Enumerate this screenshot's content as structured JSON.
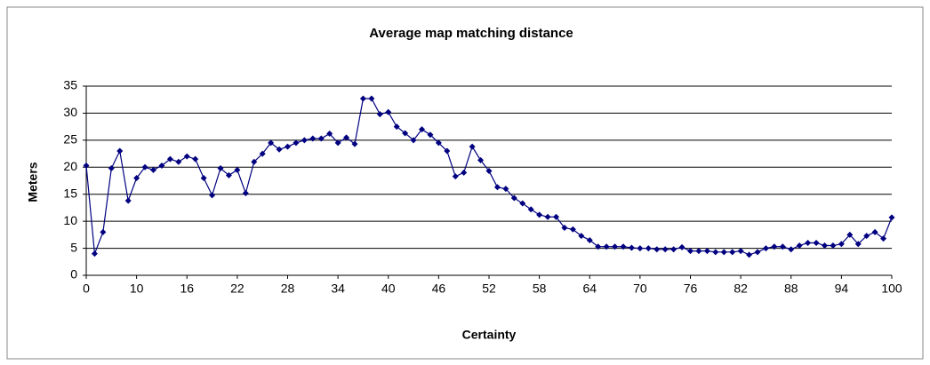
{
  "chart_data": {
    "type": "line",
    "title": "Average map matching distance",
    "x_label": "Certainty",
    "y_label": "Meters",
    "categories": [
      0,
      null,
      null,
      null,
      null,
      null,
      10,
      null,
      null,
      null,
      null,
      null,
      16,
      null,
      null,
      null,
      null,
      null,
      22,
      null,
      null,
      null,
      null,
      null,
      28,
      null,
      null,
      null,
      null,
      null,
      34,
      null,
      null,
      null,
      null,
      null,
      40,
      null,
      null,
      null,
      null,
      null,
      46,
      null,
      null,
      null,
      null,
      null,
      52,
      null,
      null,
      null,
      null,
      null,
      58,
      null,
      null,
      null,
      null,
      null,
      64,
      null,
      null,
      null,
      null,
      null,
      70,
      null,
      null,
      null,
      null,
      null,
      76,
      null,
      null,
      null,
      null,
      null,
      82,
      null,
      null,
      null,
      null,
      null,
      88,
      null,
      null,
      null,
      null,
      null,
      94,
      null,
      null,
      null,
      null,
      null,
      100
    ],
    "values": [
      20.3,
      4,
      8,
      19.8,
      23,
      13.8,
      18,
      20,
      19.5,
      20.3,
      21.5,
      21,
      22,
      21.5,
      18,
      14.8,
      19.8,
      18.5,
      19.5,
      15.2,
      21,
      22.5,
      24.5,
      23.3,
      23.8,
      24.5,
      25,
      25.3,
      25.3,
      26.2,
      24.5,
      25.5,
      24.3,
      32.7,
      32.7,
      29.8,
      30.2,
      27.5,
      26.3,
      25,
      27,
      26,
      24.5,
      23,
      18.3,
      19,
      23.8,
      21.3,
      19.3,
      16.3,
      16,
      14.3,
      13.3,
      12.2,
      11.2,
      10.8,
      10.8,
      8.8,
      8.5,
      7.3,
      6.5,
      5.3,
      5.3,
      5.3,
      5.3,
      5.1,
      5,
      5,
      4.8,
      4.8,
      4.8,
      5.2,
      4.5,
      4.5,
      4.5,
      4.3,
      4.3,
      4.3,
      4.5,
      3.8,
      4.3,
      5,
      5.3,
      5.3,
      4.8,
      5.5,
      6,
      6,
      5.5,
      5.5,
      5.8,
      7.5,
      5.8,
      7.3,
      8,
      6.8,
      10.7
    ],
    "color": "#000080",
    "ylim": [
      0,
      35
    ],
    "yticks": [
      0,
      5,
      10,
      15,
      20,
      25,
      30,
      35
    ],
    "grid": true
  }
}
